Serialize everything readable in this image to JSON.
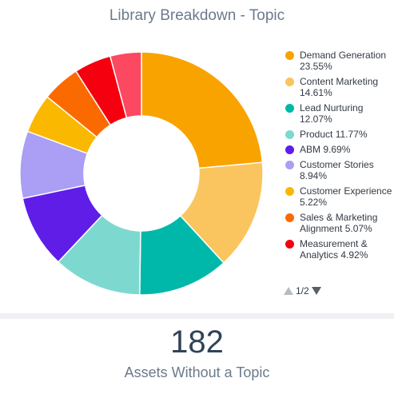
{
  "chart_data": {
    "type": "pie",
    "title": "Library Breakdown - Topic",
    "legend_position": "right",
    "categories": [
      "Demand Generation",
      "Content Marketing",
      "Lead Nurturing",
      "Product",
      "ABM",
      "Customer Stories",
      "Customer Experience",
      "Sales & Marketing Alignment",
      "Measurement & Analytics",
      "(unlabeled, legend page 2)"
    ],
    "values": [
      23.55,
      14.61,
      12.07,
      11.77,
      9.69,
      8.94,
      5.22,
      5.07,
      4.92,
      4.15
    ],
    "colors": [
      "#f9a300",
      "#fac55f",
      "#00b8a9",
      "#7dd9cf",
      "#5f1de7",
      "#aa9ef5",
      "#fbb800",
      "#fb6a00",
      "#f4000f",
      "#fd4861"
    ],
    "legend": [
      {
        "label": "Demand Generation 23.55%",
        "color": "#f9a300"
      },
      {
        "label": "Content Marketing 14.61%",
        "color": "#fac55f"
      },
      {
        "label": "Lead Nurturing 12.07%",
        "color": "#00b8a9"
      },
      {
        "label": "Product 11.77%",
        "color": "#7dd9cf"
      },
      {
        "label": "ABM 9.69%",
        "color": "#5f1de7"
      },
      {
        "label": "Customer Stories 8.94%",
        "color": "#aa9ef5"
      },
      {
        "label": "Customer Experience 5.22%",
        "color": "#fbb800"
      },
      {
        "label": "Sales & Marketing Alignment 5.07%",
        "color": "#fb6a00"
      },
      {
        "label": "Measurement & Analytics 4.92%",
        "color": "#f4000f"
      }
    ]
  },
  "pager": {
    "text": "1/2",
    "prev_icon": "triangle-up-icon",
    "next_icon": "triangle-down-icon"
  },
  "stat": {
    "value": "182",
    "label": "Assets Without a Topic"
  }
}
